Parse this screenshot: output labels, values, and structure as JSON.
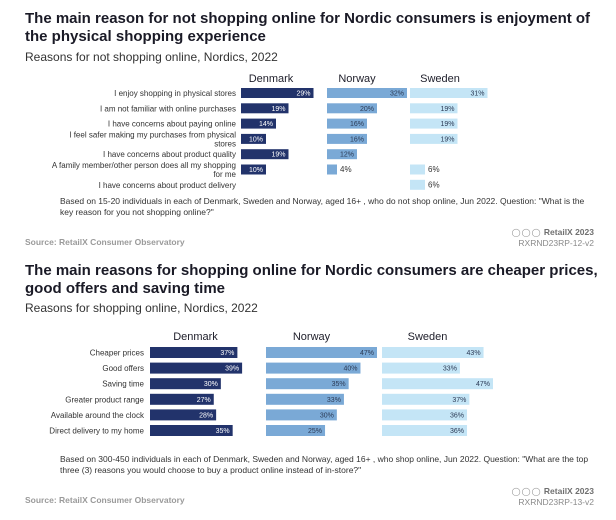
{
  "chart_data": [
    {
      "type": "bar",
      "title": "The main reason for not shopping online for Nordic consumers is enjoyment of the physical shopping experience",
      "subtitle": "Reasons for not shopping online, Nordics, 2022",
      "categories": [
        "I enjoy shopping in physical stores",
        "I am not familiar with online purchases",
        "I have concerns about paying online",
        "I feel safer making my purchases from physical stores",
        "I have concerns about product quality",
        "A family member/other person does all my shopping for me",
        "I have concerns about product delivery"
      ],
      "category_lines": [
        [
          "I enjoy shopping in physical stores"
        ],
        [
          "I am not familiar with online purchases"
        ],
        [
          "I have concerns about paying online"
        ],
        [
          "I feel safer making my purchases from physical",
          "stores"
        ],
        [
          "I have concerns about product quality"
        ],
        [
          "A family member/other person does all my shopping",
          "for me"
        ],
        [
          "I have concerns about product delivery"
        ]
      ],
      "series": [
        {
          "name": "Denmark",
          "values": [
            29,
            19,
            14,
            10,
            19,
            10,
            null
          ],
          "labels": [
            "29%",
            "19%",
            "14%",
            "10%",
            "19%",
            "10%",
            ""
          ]
        },
        {
          "name": "Norway",
          "values": [
            32,
            20,
            16,
            16,
            12,
            4,
            null
          ],
          "labels": [
            "32%",
            "20%",
            "16%",
            "16%",
            "12%",
            "4%",
            ""
          ]
        },
        {
          "name": "Sweden",
          "values": [
            31,
            19,
            19,
            19,
            null,
            6,
            6
          ],
          "labels": [
            "31%",
            "19%",
            "19%",
            "19%",
            "",
            "6%",
            "6%"
          ]
        }
      ],
      "xlim": [
        0,
        32
      ],
      "note": "Based on 15-20 individuals in each of Denmark, Sweden and Norway, aged 16+ , who do not shop online, Jun 2022. Question: \"What is the key reason for you not shopping online?\"",
      "source": "Source: RetailX Consumer Observatory",
      "brand": "RetailX 2023",
      "code": "RXRND23RP-12-v2"
    },
    {
      "type": "bar",
      "title": "The main reasons for shopping online for Nordic consumers are cheaper prices, good offers and saving time",
      "subtitle": "Reasons for shopping online, Nordics, 2022",
      "categories": [
        "Cheaper prices",
        "Good offers",
        "Saving time",
        "Greater product range",
        "Available around the clock",
        "Direct delivery to my home"
      ],
      "category_lines": [
        [
          "Cheaper prices"
        ],
        [
          "Good offers"
        ],
        [
          "Saving time"
        ],
        [
          "Greater product range"
        ],
        [
          "Available around the clock"
        ],
        [
          "Direct delivery to my home"
        ]
      ],
      "series": [
        {
          "name": "Denmark",
          "values": [
            37,
            39,
            30,
            27,
            28,
            35
          ],
          "labels": [
            "37%",
            "39%",
            "30%",
            "27%",
            "28%",
            "35%"
          ]
        },
        {
          "name": "Norway",
          "values": [
            47,
            40,
            35,
            33,
            30,
            25
          ],
          "labels": [
            "47%",
            "40%",
            "35%",
            "33%",
            "30%",
            "25%"
          ]
        },
        {
          "name": "Sweden",
          "values": [
            43,
            33,
            47,
            37,
            36,
            36
          ],
          "labels": [
            "43%",
            "33%",
            "47%",
            "37%",
            "36%",
            "36%"
          ]
        }
      ],
      "xlim": [
        0,
        47
      ],
      "note": "Based on 300-450 individuals in each of Denmark, Sweden and Norway, aged 16+ , who shop online, Jun 2022. Question: \"What are the top three (3) reasons you would choose to buy a product online instead of in-store?\"",
      "source": "Source: RetailX Consumer Observatory",
      "brand": "RetailX 2023",
      "code": "RXRND23RP-13-v2"
    }
  ],
  "colors": {
    "Denmark": "#22336b",
    "Norway": "#7aa9d6",
    "Sweden": "#c4e5f6",
    "label_dark": "#ffffff",
    "label_light": "#2b3a55"
  },
  "brand_dots_icon": "circle-dots-icon"
}
